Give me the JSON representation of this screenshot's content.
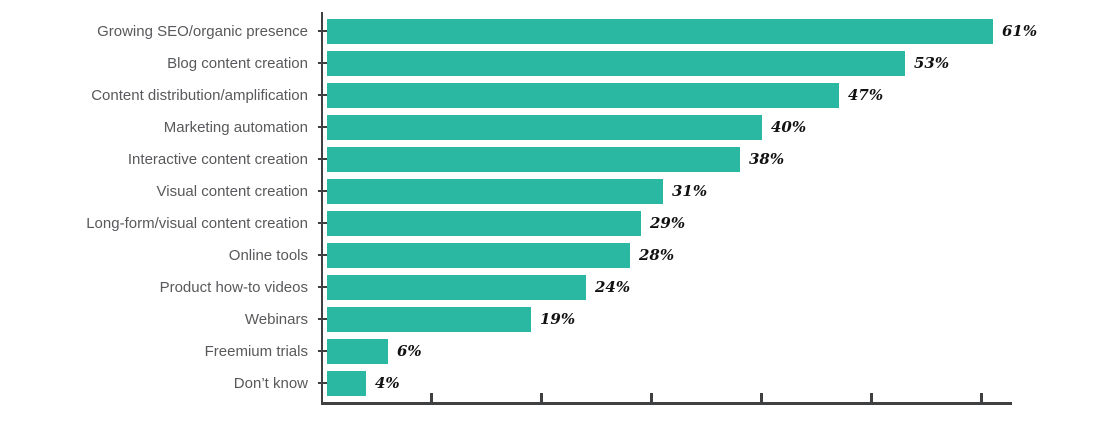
{
  "chart_data": {
    "type": "bar",
    "orientation": "horizontal",
    "title": "",
    "xlabel": "",
    "ylabel": "",
    "categories": [
      "Growing SEO/organic presence",
      "Blog content creation",
      "Content distribution/amplification",
      "Marketing automation",
      "Interactive content creation",
      "Visual content creation",
      "Long-form/visual content creation",
      "Online tools",
      "Product how-to videos",
      "Webinars",
      "Freemium trials",
      "Don’t know"
    ],
    "values": [
      61,
      53,
      47,
      40,
      38,
      31,
      29,
      28,
      24,
      19,
      6,
      4
    ],
    "value_labels": [
      "61%",
      "53%",
      "47%",
      "40%",
      "38%",
      "31%",
      "29%",
      "28%",
      "24%",
      "19%",
      "6%",
      "4%"
    ],
    "xlim": [
      0,
      62.8
    ],
    "x_ticks": [
      10,
      20,
      30,
      40,
      50,
      60
    ],
    "grid": false,
    "legend": false,
    "colors": {
      "bar": "#2bb8a2",
      "axis": "#3f4042",
      "category_label": "#58595c",
      "value_label": "#111111"
    }
  }
}
